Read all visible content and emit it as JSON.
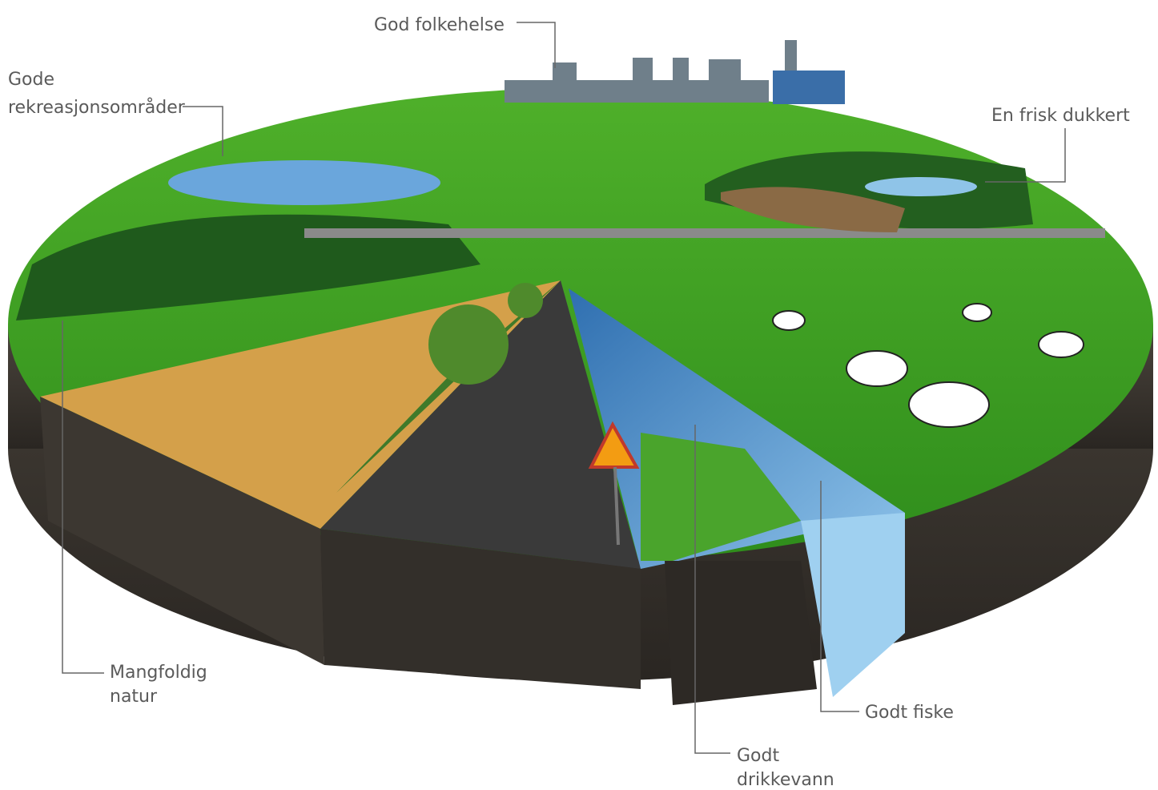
{
  "labels": [
    {
      "lines": [
        "God folkehelse"
      ]
    },
    {
      "lines": [
        "Gode",
        "rekreasjonsområder"
      ]
    },
    {
      "lines": [
        "En frisk dukkert"
      ]
    },
    {
      "lines": [
        "Mangfoldig",
        "natur"
      ]
    },
    {
      "lines": [
        "Godt fiske"
      ]
    },
    {
      "lines": [
        "Godt",
        "drikkevann"
      ]
    }
  ]
}
